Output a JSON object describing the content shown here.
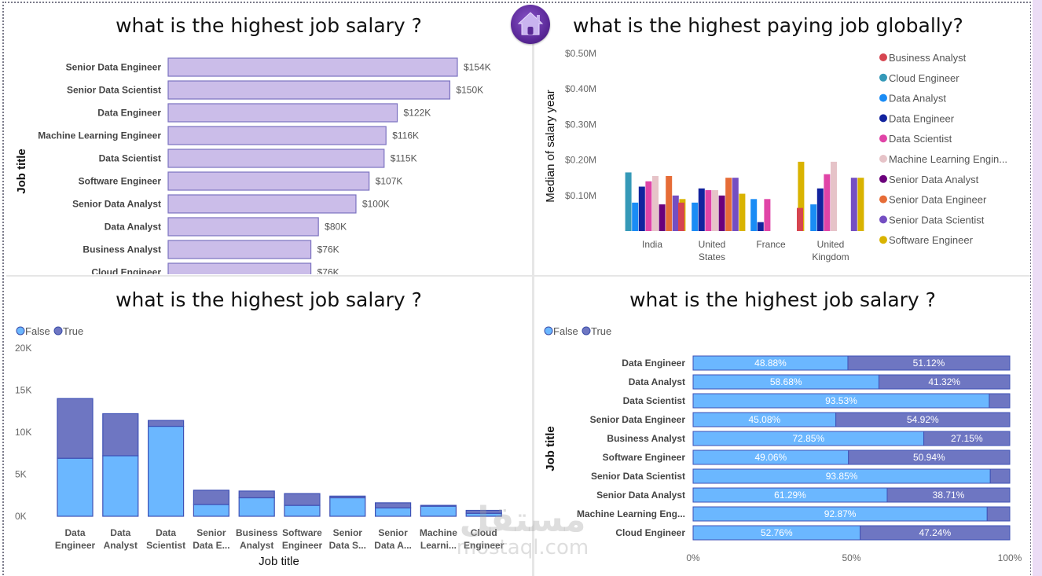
{
  "dashboard": {
    "home_button_label": "Home",
    "watermark_arabic": "مستقل",
    "watermark_latin": "mostaql.com"
  },
  "chart_data": [
    {
      "id": "top-left",
      "type": "bar",
      "orientation": "horizontal",
      "title": "what is the highest job salary ?",
      "xlabel": "",
      "ylabel": "Job title",
      "categories": [
        "Senior Data Engineer",
        "Senior Data Scientist",
        "Data Engineer",
        "Machine Learning Engineer",
        "Data Scientist",
        "Software Engineer",
        "Senior Data Analyst",
        "Data Analyst",
        "Business Analyst",
        "Cloud Engineer"
      ],
      "values": [
        154,
        150,
        122,
        116,
        115,
        107,
        100,
        80,
        76,
        76
      ],
      "data_labels": [
        "$154K",
        "$150K",
        "$122K",
        "$116K",
        "$115K",
        "$107K",
        "$100K",
        "$80K",
        "$76K",
        "$76K"
      ],
      "units": "thousand USD",
      "xlim": [
        0,
        160
      ],
      "color": "#cbbde9",
      "stroke": "#7b72c0"
    },
    {
      "id": "top-right",
      "type": "bar",
      "orientation": "vertical-clustered",
      "title": "what is the highest paying job globally?",
      "xlabel": "",
      "ylabel": "Median of salary year",
      "categories": [
        "India",
        "United States",
        "France",
        "United Kingdom"
      ],
      "category_lines": [
        [
          "India"
        ],
        [
          "United",
          "States"
        ],
        [
          "France"
        ],
        [
          "United",
          "Kingdom"
        ]
      ],
      "yticks": [
        "$0.10M",
        "$0.20M",
        "$0.30M",
        "$0.40M",
        "$0.50M"
      ],
      "ytick_values": [
        0.1,
        0.2,
        0.3,
        0.4,
        0.5
      ],
      "ylim": [
        0,
        0.5
      ],
      "units": "million USD",
      "legend_position": "right",
      "series": [
        {
          "name": "Business Analyst",
          "color": "#d64550",
          "values": [
            null,
            0.08,
            null,
            0.065
          ]
        },
        {
          "name": "Cloud Engineer",
          "color": "#3599b8",
          "values": [
            0.165,
            null,
            null,
            null
          ]
        },
        {
          "name": "Data Analyst",
          "color": "#1a8cf5",
          "values": [
            0.08,
            0.08,
            0.09,
            0.075
          ]
        },
        {
          "name": "Data Engineer",
          "color": "#12239e",
          "values": [
            0.125,
            0.12,
            0.025,
            0.12
          ]
        },
        {
          "name": "Data Scientist",
          "color": "#e044a7",
          "values": [
            0.14,
            0.115,
            0.09,
            0.16
          ]
        },
        {
          "name": "Machine Learning Engin...",
          "color": "#e6c3c8",
          "values": [
            0.155,
            0.115,
            null,
            0.195
          ]
        },
        {
          "name": "Senior Data Analyst",
          "color": "#6b007b",
          "values": [
            0.075,
            0.1,
            null,
            null
          ]
        },
        {
          "name": "Senior Data Engineer",
          "color": "#e66c37",
          "values": [
            0.155,
            0.15,
            null,
            null
          ]
        },
        {
          "name": "Senior Data Scientist",
          "color": "#744ec2",
          "values": [
            0.1,
            0.15,
            null,
            0.15
          ]
        },
        {
          "name": "Software Engineer",
          "color": "#d9b300",
          "values": [
            0.09,
            0.105,
            0.195,
            0.15
          ]
        }
      ]
    },
    {
      "id": "bottom-left",
      "type": "bar",
      "orientation": "vertical-stacked",
      "title": "what is the highest job salary ?",
      "xlabel": "Job title",
      "ylabel": "",
      "categories": [
        "Data Engineer",
        "Data Analyst",
        "Data Scientist",
        "Senior Data Engineer",
        "Business Analyst",
        "Software Engineer",
        "Senior Data Scientist",
        "Senior Data Analyst",
        "Machine Learning Engineer",
        "Cloud Engineer"
      ],
      "category_lines": [
        [
          "Data",
          "Engineer"
        ],
        [
          "Data",
          "Analyst"
        ],
        [
          "Data",
          "Scientist"
        ],
        [
          "Senior",
          "Data E..."
        ],
        [
          "Business",
          "Analyst"
        ],
        [
          "Software",
          "Engineer"
        ],
        [
          "Senior",
          "Data S..."
        ],
        [
          "Senior",
          "Data A..."
        ],
        [
          "Machine",
          "Learni..."
        ],
        [
          "Cloud",
          "Engineer"
        ]
      ],
      "yticks": [
        "0K",
        "5K",
        "10K",
        "15K",
        "20K"
      ],
      "ytick_values": [
        0,
        5000,
        10000,
        15000,
        20000
      ],
      "ylim": [
        0,
        20000
      ],
      "legend_position": "top-left",
      "legend": [
        {
          "name": "False",
          "color": "#6bb7ff"
        },
        {
          "name": "True",
          "color": "#6e76c2"
        }
      ],
      "series": [
        {
          "name": "False",
          "color": "#6bb7ff",
          "values": [
            6900,
            7200,
            10700,
            1400,
            2200,
            1300,
            2200,
            1000,
            1200,
            350
          ]
        },
        {
          "name": "True",
          "color": "#6e76c2",
          "values": [
            7100,
            5000,
            700,
            1700,
            800,
            1400,
            200,
            600,
            100,
            350
          ]
        }
      ]
    },
    {
      "id": "bottom-right",
      "type": "bar",
      "orientation": "horizontal-100pct-stacked",
      "title": "what is the highest job salary ?",
      "xlabel": "",
      "ylabel": "Job title",
      "categories": [
        "Data Engineer",
        "Data Analyst",
        "Data Scientist",
        "Senior Data Engineer",
        "Business Analyst",
        "Software Engineer",
        "Senior Data Scientist",
        "Senior Data Analyst",
        "Machine Learning Eng...",
        "Cloud Engineer"
      ],
      "xticks": [
        "0%",
        "50%",
        "100%"
      ],
      "xlim": [
        0,
        100
      ],
      "legend_position": "top-left",
      "legend": [
        {
          "name": "False",
          "color": "#6bb7ff"
        },
        {
          "name": "True",
          "color": "#6e76c2"
        }
      ],
      "series": [
        {
          "name": "False",
          "color": "#6bb7ff",
          "values": [
            48.88,
            58.68,
            93.53,
            45.08,
            72.85,
            49.06,
            93.85,
            61.29,
            92.87,
            52.76
          ],
          "labels": [
            "48.88%",
            "58.68%",
            "93.53%",
            "45.08%",
            "72.85%",
            "49.06%",
            "93.85%",
            "61.29%",
            "92.87%",
            "52.76%"
          ]
        },
        {
          "name": "True",
          "color": "#6e76c2",
          "values": [
            51.12,
            41.32,
            6.47,
            54.92,
            27.15,
            50.94,
            6.15,
            38.71,
            7.13,
            47.24
          ],
          "labels": [
            "51.12%",
            "41.32%",
            "",
            "54.92%",
            "27.15%",
            "50.94%",
            "",
            "38.71%",
            "",
            "47.24%"
          ]
        }
      ]
    }
  ]
}
